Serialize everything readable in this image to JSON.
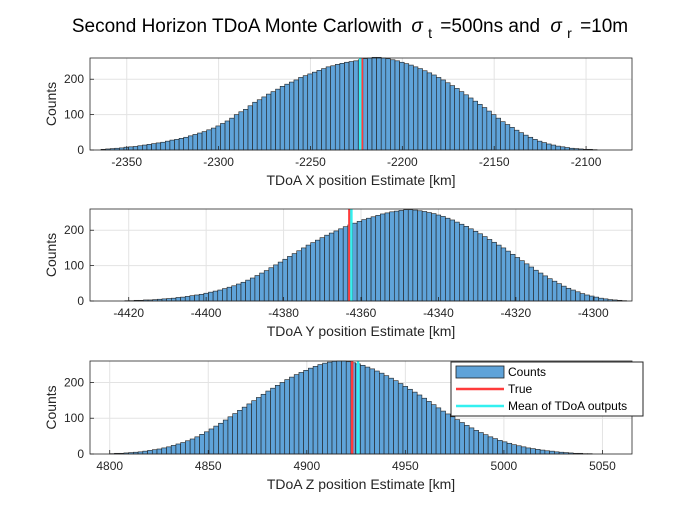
{
  "figure": {
    "title_main": "Second Horizon TDoA Monte Carlowith",
    "title_sigma_t_sub": "t",
    "title_sigma_t_val": "=500ns and",
    "title_sigma_r_sub": "r",
    "title_sigma_r_val": "=10m",
    "title_symbol": "σ"
  },
  "legend": {
    "entries": [
      "Counts",
      "True",
      "Mean of TDoA outputs"
    ]
  },
  "colors": {
    "bar_fill": "#5fa3d9",
    "bar_edge": "#1f1f1f",
    "true_line": "#ff3b3b",
    "mean_line": "#33f0f0",
    "grid": "#e3e3e3",
    "axis": "#262626"
  },
  "chart_data": [
    {
      "type": "bar",
      "subtype": "histogram",
      "xlabel": "TDoA X position Estimate [km]",
      "ylabel": "Counts",
      "xlim": [
        -2370,
        -2075
      ],
      "ylim": [
        0,
        260
      ],
      "xticks": [
        -2350,
        -2300,
        -2250,
        -2200,
        -2150,
        -2100
      ],
      "yticks": [
        0,
        100,
        200
      ],
      "grid": true,
      "bin_start": -2364,
      "bin_width": 2.5,
      "counts": [
        2,
        3,
        4,
        5,
        6,
        8,
        9,
        10,
        12,
        14,
        16,
        18,
        20,
        22,
        25,
        28,
        30,
        33,
        36,
        40,
        44,
        48,
        52,
        57,
        62,
        68,
        75,
        82,
        90,
        100,
        108,
        115,
        125,
        135,
        142,
        150,
        158,
        165,
        172,
        180,
        186,
        192,
        198,
        205,
        210,
        215,
        220,
        225,
        230,
        235,
        238,
        242,
        245,
        248,
        250,
        252,
        255,
        258,
        260,
        262,
        262,
        260,
        258,
        255,
        252,
        248,
        244,
        240,
        235,
        230,
        224,
        218,
        212,
        205,
        198,
        190,
        182,
        174,
        165,
        156,
        147,
        138,
        129,
        120,
        110,
        100,
        90,
        80,
        72,
        64,
        56,
        49,
        42,
        36,
        30,
        25,
        21,
        17,
        14,
        11,
        9,
        7,
        5,
        4,
        3,
        2,
        2,
        1
      ],
      "true_x": -2222,
      "mean_x": -2224
    },
    {
      "type": "bar",
      "subtype": "histogram",
      "xlabel": "TDoA Y position Estimate [km]",
      "ylabel": "Counts",
      "xlim": [
        -4430,
        -4290
      ],
      "ylim": [
        0,
        260
      ],
      "xticks": [
        -4420,
        -4400,
        -4380,
        -4360,
        -4340,
        -4320,
        -4300
      ],
      "yticks": [
        0,
        100,
        200
      ],
      "grid": true,
      "bin_start": -4421,
      "bin_width": 1.2,
      "counts": [
        1,
        1,
        2,
        2,
        3,
        3,
        4,
        5,
        6,
        7,
        8,
        10,
        11,
        13,
        15,
        17,
        19,
        22,
        25,
        28,
        31,
        35,
        39,
        43,
        48,
        53,
        59,
        65,
        72,
        79,
        86,
        94,
        102,
        110,
        118,
        126,
        134,
        142,
        150,
        158,
        165,
        172,
        179,
        186,
        192,
        198,
        204,
        210,
        215,
        220,
        225,
        230,
        234,
        238,
        242,
        246,
        249,
        252,
        254,
        256,
        258,
        258,
        257,
        255,
        253,
        250,
        247,
        243,
        239,
        234,
        229,
        223,
        217,
        211,
        204,
        197,
        190,
        182,
        174,
        166,
        158,
        150,
        141,
        132,
        123,
        114,
        105,
        96,
        87,
        79,
        71,
        63,
        56,
        49,
        42,
        36,
        31,
        26,
        21,
        17,
        14,
        11,
        8,
        6,
        4,
        3,
        2,
        1
      ],
      "true_x": -4363,
      "mean_x": -4363
    },
    {
      "type": "bar",
      "subtype": "histogram",
      "xlabel": "TDoA Z position Estimate [km]",
      "ylabel": "Counts",
      "xlim": [
        4790,
        5065
      ],
      "ylim": [
        0,
        260
      ],
      "xticks": [
        4800,
        4850,
        4900,
        4950,
        5000,
        5050
      ],
      "yticks": [
        0,
        100,
        200
      ],
      "grid": true,
      "bin_start": 4800,
      "bin_width": 2.4,
      "counts": [
        1,
        2,
        2,
        3,
        4,
        5,
        6,
        8,
        10,
        12,
        14,
        17,
        20,
        24,
        28,
        32,
        37,
        42,
        48,
        55,
        62,
        70,
        78,
        86,
        95,
        104,
        113,
        122,
        131,
        140,
        149,
        158,
        167,
        176,
        184,
        192,
        200,
        208,
        215,
        222,
        228,
        234,
        240,
        245,
        250,
        254,
        257,
        259,
        260,
        260,
        258,
        255,
        252,
        248,
        243,
        238,
        232,
        226,
        219,
        212,
        205,
        197,
        189,
        181,
        173,
        165,
        156,
        147,
        138,
        129,
        120,
        112,
        104,
        96,
        88,
        80,
        73,
        66,
        60,
        54,
        48,
        43,
        38,
        34,
        30,
        26,
        23,
        20,
        17,
        15,
        13,
        11,
        9,
        8,
        6,
        5,
        4,
        3,
        2,
        2,
        1,
        1
      ],
      "true_x": 4923,
      "mean_x": 4925
    }
  ]
}
